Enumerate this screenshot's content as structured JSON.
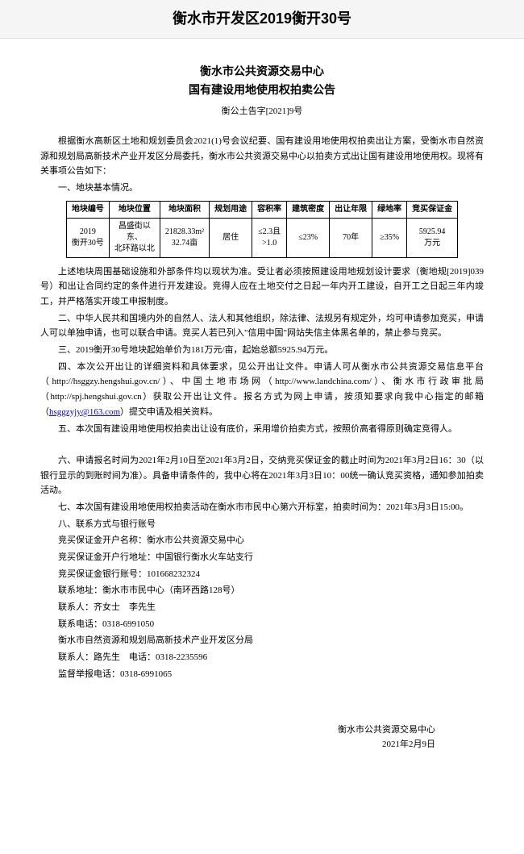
{
  "header": "衡水市开发区2019衡开30号",
  "title_line1": "衡水市公共资源交易中心",
  "title_line2": "国有建设用地使用权拍卖公告",
  "subtitle": "衡公土告字[2021]9号",
  "intro": "根据衡水高新区土地和规划委员会2021(1)号会议纪要、国有建设用地使用权拍卖出让方案，受衡水市自然资源和规划局高新技术产业开发区分局委托，衡水市公共资源交易中心以拍卖方式出让国有建设用地使用权。现将有关事项公告如下：",
  "section1_head": "一、地块基本情况。",
  "table": {
    "headers": [
      "地块编号",
      "地块位置",
      "地块面积",
      "规划用途",
      "容积率",
      "建筑密度",
      "出让年限",
      "绿地率",
      "竞买保证金"
    ],
    "row": {
      "id": "2019\n衡开30号",
      "loc": "昌盛街以\n东、\n北环路以北",
      "area": "21828.33m²\n32.74亩",
      "use": "居住",
      "far": "≤2.3且\n>1.0",
      "density": "≤23%",
      "term": "70年",
      "green": "≥35%",
      "deposit": "5925.94\n万元"
    }
  },
  "para_after_table": "上述地块周围基础设施和外部条件均以现状为准。受让者必须按照建设用地规划设计要求（衡地规[2019]039号）和出让合同约定的条件进行开发建设。竞得人应在土地交付之日起一年内开工建设，自开工之日起三年内竣工，并严格落实开竣工申报制度。",
  "section2": "二、中华人民共和国境内外的自然人、法人和其他组织，除法律、法规另有规定外，均可申请参加竞买，申请人可以单独申请，也可以联合申请。竞买人若已列入\"信用中国\"网站失信主体黑名单的，禁止参与竞买。",
  "section3": "三、2019衡开30号地块起始单价为181万元/亩，起始总额5925.94万元。",
  "section4_a": "四、本次公开出让的详细资料和具体要求，见公开出让文件。申请人可从衡水市公共资源交易信息平台（http://hsggzy.hengshui.gov.cn/）、中国土地市场网（http://www.landchina.com/）、衡水市行政审批局（http://spj.hengshui.gov.cn）获取公开出让文件。报名方式为网上申请，按须知要求向我中心指定的邮箱（",
  "section4_email": "hsggzyjy@163.com",
  "section4_b": "）提交申请及相关资料。",
  "section5": "五、本次国有建设用地使用权拍卖出让设有底价，采用增价拍卖方式，按照价高者得原则确定竞得人。",
  "section6": "六、申请报名时间为2021年2月10日至2021年3月2日，交纳竞买保证金的截止时间为2021年3月2日16：30（以银行显示的到账时间为准）。具备申请条件的，我中心将在2021年3月3日10：00统一确认竞买资格，通知参加拍卖活动。",
  "section7": "七、本次国有建设用地使用权拍卖活动在衡水市市民中心第六开标室，拍卖时间为：2021年3月3日15:00。",
  "section8_head": "八、联系方式与银行账号",
  "contact": {
    "acct_name": "竞买保证金开户名称：衡水市公共资源交易中心",
    "acct_bank": "竞买保证金开户行地址：中国银行衡水火车站支行",
    "acct_no": "竞买保证金银行账号：101668232324",
    "addr": "联系地址：衡水市市民中心（南环西路128号）",
    "person1": "联系人：齐女士　李先生",
    "tel1": "联系电话：0318-6991050",
    "org2": "衡水市自然资源和规划局高新技术产业开发区分局",
    "person2": "联系人：路先生　电话：0318-2235596",
    "supervise": "监督举报电话：0318-6991065"
  },
  "footer_org": "衡水市公共资源交易中心",
  "footer_date": "2021年2月9日"
}
